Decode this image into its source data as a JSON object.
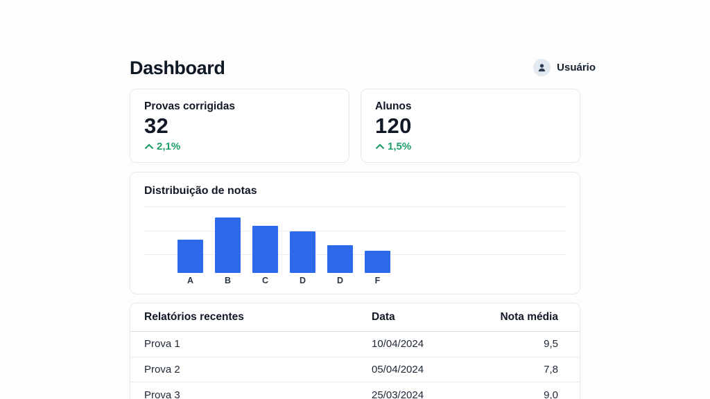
{
  "header": {
    "title": "Dashboard",
    "user": {
      "label": "Usuário"
    }
  },
  "stats": [
    {
      "label": "Provas corrigidas",
      "value": "32",
      "delta": "2,1%",
      "trend": "up"
    },
    {
      "label": "Alunos",
      "value": "120",
      "delta": "1,5%",
      "trend": "up"
    }
  ],
  "chart_data": {
    "type": "bar",
    "title": "Distribuição de notas",
    "categories": [
      "A",
      "B",
      "C",
      "D",
      "D",
      "F"
    ],
    "values": [
      12,
      20,
      17,
      15,
      10,
      8
    ],
    "xlabel": "",
    "ylabel": "",
    "ylim": [
      0,
      24
    ],
    "grid": true,
    "legend": false,
    "bar_color": "#2d69eb"
  },
  "table": {
    "headers": [
      "Relatórios recentes",
      "Data",
      "Nota média"
    ],
    "rows": [
      [
        "Prova 1",
        "10/04/2024",
        "9,5"
      ],
      [
        "Prova 2",
        "05/04/2024",
        "7,8"
      ],
      [
        "Prova 3",
        "25/03/2024",
        "9,0"
      ]
    ]
  },
  "colors": {
    "accent_blue": "#2d69eb",
    "positive_green": "#1c9f66",
    "text_dark": "#101725",
    "card_border": "#e4e7ec",
    "avatar_bg": "#e3e9f1"
  }
}
